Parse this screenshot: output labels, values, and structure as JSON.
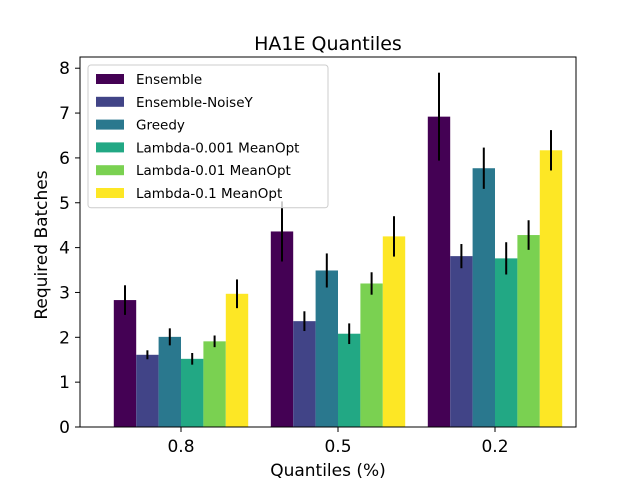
{
  "chart_data": {
    "type": "bar",
    "title": "HA1E Quantiles",
    "xlabel": "Quantiles (%)",
    "ylabel": "Required Batches",
    "categories": [
      "0.8",
      "0.5",
      "0.2"
    ],
    "ylim": [
      0,
      8.25
    ],
    "yticks": [
      0,
      1,
      2,
      3,
      4,
      5,
      6,
      7,
      8
    ],
    "grid": false,
    "legend_position": "upper-left",
    "series": [
      {
        "name": "Ensemble",
        "color": "#440154",
        "values": [
          2.83,
          4.36,
          6.92
        ],
        "errors": [
          0.33,
          0.67,
          0.98
        ]
      },
      {
        "name": "Ensemble-NoiseY",
        "color": "#414487",
        "values": [
          1.61,
          2.36,
          3.81
        ],
        "errors": [
          0.1,
          0.22,
          0.27
        ]
      },
      {
        "name": "Greedy",
        "color": "#2a788e",
        "values": [
          2.01,
          3.49,
          5.77
        ],
        "errors": [
          0.19,
          0.38,
          0.46
        ]
      },
      {
        "name": "Lambda-0.001 MeanOpt",
        "color": "#22a884",
        "values": [
          1.52,
          2.08,
          3.76
        ],
        "errors": [
          0.13,
          0.23,
          0.36
        ]
      },
      {
        "name": "Lambda-0.01 MeanOpt",
        "color": "#7ad151",
        "values": [
          1.91,
          3.2,
          4.28
        ],
        "errors": [
          0.13,
          0.25,
          0.33
        ]
      },
      {
        "name": "Lambda-0.1 MeanOpt",
        "color": "#fde725",
        "values": [
          2.97,
          4.25,
          6.17
        ],
        "errors": [
          0.32,
          0.45,
          0.45
        ]
      }
    ]
  }
}
